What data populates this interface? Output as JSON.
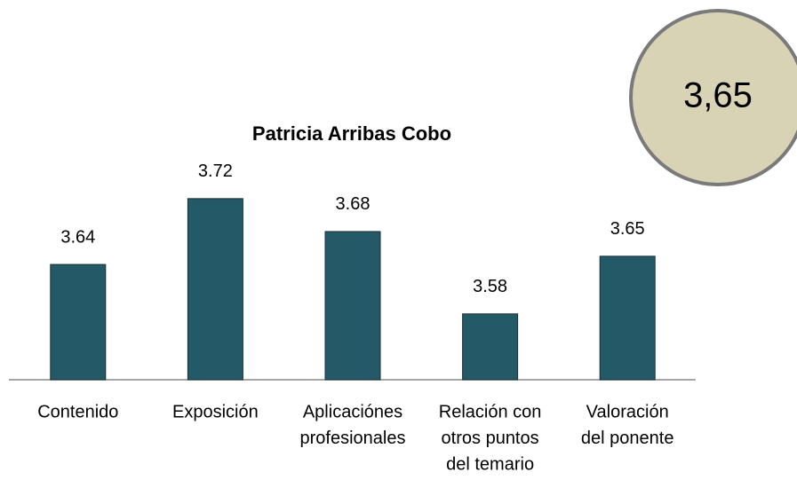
{
  "chart_data": {
    "type": "bar",
    "title": "Patricia Arribas Cobo",
    "categories": [
      [
        "Contenido"
      ],
      [
        "Exposición"
      ],
      [
        "Aplicaciónes",
        "profesionales"
      ],
      [
        "Relación con",
        "otros puntos",
        "del temario"
      ],
      [
        "Valoración",
        "del ponente"
      ]
    ],
    "values": [
      3.64,
      3.72,
      3.68,
      3.58,
      3.65
    ],
    "color": "#245a68",
    "ylim": [
      3.5,
      3.75
    ],
    "badge": "3,65"
  }
}
